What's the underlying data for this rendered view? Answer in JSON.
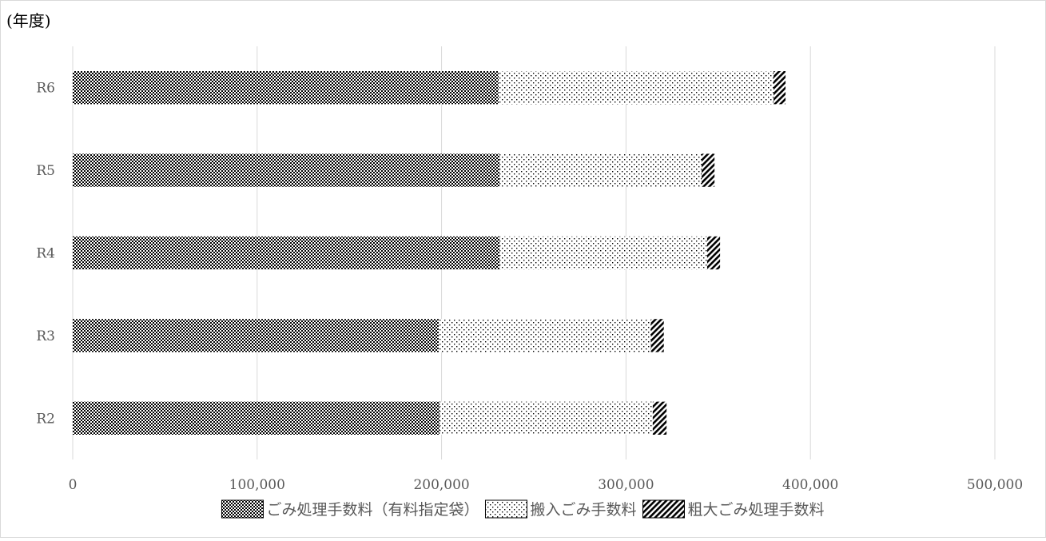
{
  "chart_data": {
    "type": "bar",
    "orientation": "horizontal",
    "stacked": true,
    "title": "",
    "ylabel": "(年度)",
    "xlabel": "",
    "categories": [
      "R6",
      "R5",
      "R4",
      "R3",
      "R2"
    ],
    "series": [
      {
        "name": "ごみ処理手数料（有料指定袋）",
        "pattern": "dense-checker",
        "values": [
          231000,
          231500,
          231500,
          198500,
          199000
        ]
      },
      {
        "name": "搬入ごみ手数料",
        "pattern": "dots",
        "values": [
          149000,
          109500,
          112500,
          115000,
          115500
        ]
      },
      {
        "name": "粗大ごみ処理手数料",
        "pattern": "diagonal-hatch",
        "values": [
          6500,
          7000,
          7000,
          7000,
          7500
        ]
      }
    ],
    "xlim": [
      0,
      500000
    ],
    "xticks": [
      0,
      100000,
      200000,
      300000,
      400000,
      500000
    ],
    "xtick_labels": [
      "0",
      "100,000",
      "200,000",
      "300,000",
      "400,000",
      "500,000"
    ],
    "grid": "vertical",
    "legend_position": "bottom",
    "colors": {
      "ink": "#000000",
      "grid": "#d9d9d9",
      "text": "#595959"
    }
  }
}
